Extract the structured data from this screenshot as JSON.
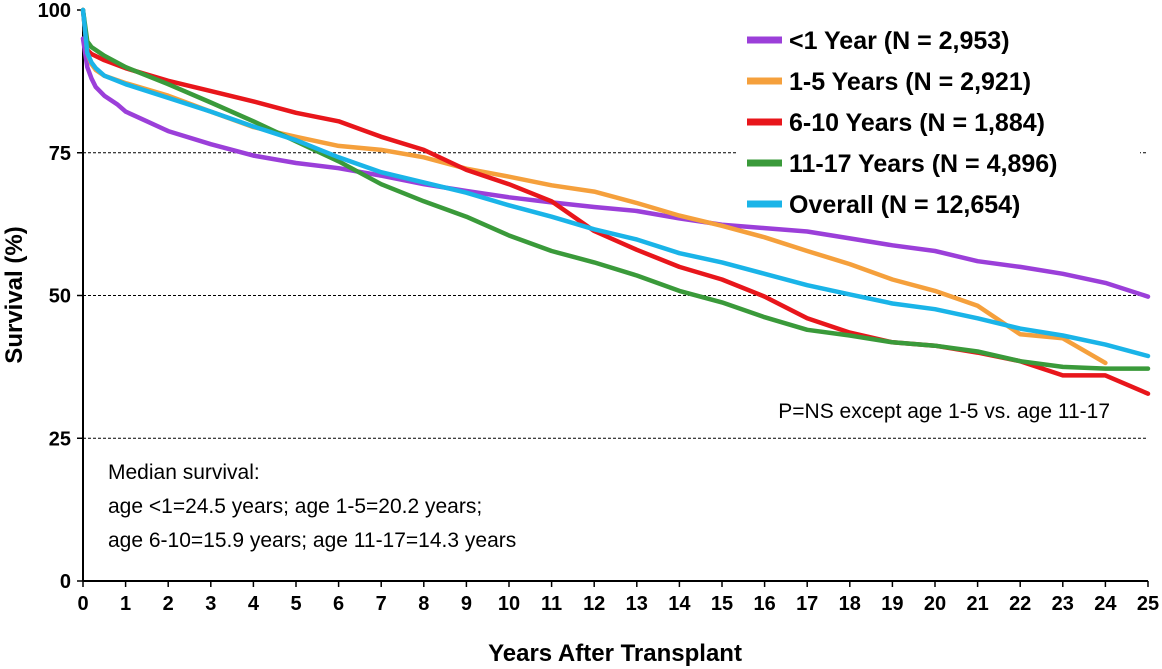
{
  "chart_data": {
    "type": "line",
    "title": "",
    "xlabel": "Years After Transplant",
    "ylabel": "Survival (%)",
    "xlim": [
      0,
      25
    ],
    "ylim": [
      0,
      100
    ],
    "x_ticks": [
      "0",
      "1",
      "2",
      "3",
      "4",
      "5",
      "6",
      "7",
      "8",
      "9",
      "10",
      "11",
      "12",
      "13",
      "14",
      "15",
      "16",
      "17",
      "18",
      "19",
      "20",
      "21",
      "22",
      "23",
      "24",
      "25"
    ],
    "y_ticks": [
      "0",
      "25",
      "50",
      "75",
      "100"
    ],
    "gridlines_y": [
      25,
      50,
      75
    ],
    "grid": "dashed horizontal",
    "legend_position": "top-right",
    "series": [
      {
        "name": "<1 Year (N = 2,953)",
        "color": "#9b3fd9",
        "x": [
          0,
          0.1,
          0.2,
          0.3,
          0.5,
          0.8,
          1,
          1.5,
          2,
          3,
          4,
          5,
          6,
          7,
          8,
          9,
          10,
          11,
          12,
          13,
          14,
          15,
          16,
          17,
          18,
          19,
          20,
          21,
          22,
          23,
          24,
          25
        ],
        "y": [
          95,
          90,
          88,
          86.5,
          85,
          83.5,
          82.2,
          80.5,
          78.8,
          76.5,
          74.5,
          73.2,
          72.3,
          71,
          69.5,
          68.3,
          67.2,
          66.3,
          65.5,
          64.8,
          63.5,
          62.4,
          61.8,
          61.2,
          60,
          58.8,
          57.8,
          56,
          55,
          53.8,
          52.2,
          49.8
        ]
      },
      {
        "name": "1-5 Years (N = 2,921)",
        "color": "#f5a03c",
        "x": [
          0,
          0.1,
          0.2,
          0.3,
          0.5,
          1,
          2,
          3,
          4,
          5,
          6,
          7,
          8,
          9,
          10,
          11,
          12,
          13,
          14,
          15,
          16,
          17,
          18,
          19,
          20,
          21,
          22,
          23,
          24
        ],
        "y": [
          100,
          92.5,
          90.5,
          89.5,
          88.5,
          87.2,
          85,
          82.2,
          79.5,
          77.8,
          76.2,
          75.5,
          74.2,
          72.2,
          70.8,
          69.3,
          68.2,
          66.2,
          64,
          62.2,
          60.2,
          57.8,
          55.5,
          52.8,
          50.8,
          48.2,
          43.2,
          42.5,
          38.2
        ]
      },
      {
        "name": "6-10 Years (N = 1,884)",
        "color": "#e8161b",
        "x": [
          0,
          0.1,
          0.2,
          0.5,
          1,
          2,
          3,
          4,
          5,
          6,
          7,
          8,
          9,
          10,
          11,
          12,
          13,
          14,
          15,
          16,
          17,
          18,
          19,
          20,
          21,
          22,
          23,
          24,
          25
        ],
        "y": [
          100,
          93,
          92.3,
          91.2,
          89.8,
          87.6,
          85.8,
          84,
          82,
          80.5,
          77.8,
          75.5,
          72,
          69.5,
          66.5,
          61.3,
          58,
          55,
          52.8,
          49.8,
          46,
          43.5,
          41.8,
          41.2,
          40,
          38.5,
          36,
          36,
          32.8
        ]
      },
      {
        "name": "11-17 Years (N = 4,896)",
        "color": "#3a9a3a",
        "x": [
          0,
          0.1,
          0.2,
          0.5,
          1,
          2,
          3,
          4,
          5,
          6,
          7,
          8,
          9,
          10,
          11,
          12,
          13,
          14,
          15,
          16,
          17,
          18,
          19,
          20,
          21,
          22,
          23,
          24,
          25
        ],
        "y": [
          100,
          94.5,
          93.5,
          92,
          90,
          87,
          83.8,
          80.5,
          77,
          73.5,
          69.5,
          66.5,
          63.8,
          60.5,
          57.8,
          55.8,
          53.5,
          50.8,
          48.8,
          46.2,
          44,
          43,
          41.8,
          41.2,
          40.2,
          38.5,
          37.5,
          37.2,
          37.2
        ]
      },
      {
        "name": "Overall (N = 12,654)",
        "color": "#1ab4e8",
        "x": [
          0,
          0.1,
          0.2,
          0.3,
          0.5,
          1,
          2,
          3,
          4,
          5,
          6,
          7,
          8,
          9,
          10,
          11,
          12,
          13,
          14,
          15,
          16,
          17,
          18,
          19,
          20,
          21,
          22,
          23,
          24,
          25
        ],
        "y": [
          100,
          92.5,
          90.8,
          89.8,
          88.5,
          87,
          84.6,
          82.2,
          79.6,
          77.2,
          74.2,
          71.6,
          69.8,
          68,
          65.8,
          63.8,
          61.6,
          59.8,
          57.4,
          55.8,
          53.8,
          51.8,
          50.2,
          48.6,
          47.6,
          46,
          44.2,
          43,
          41.4,
          39.4
        ]
      }
    ],
    "annotations": {
      "pvalue": "P=NS except age 1-5 vs. age 11-17",
      "median_lines": [
        "Median survival:",
        "age <1=24.5 years; age 1-5=20.2 years;",
        "age 6-10=15.9 years; age 11-17=14.3 years"
      ]
    }
  }
}
